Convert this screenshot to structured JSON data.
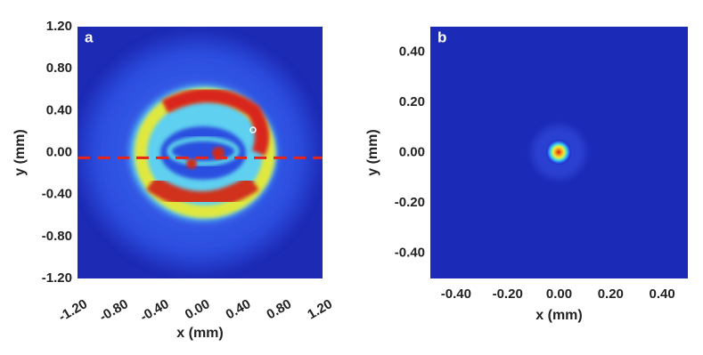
{
  "chart_data": [
    {
      "type": "heatmap",
      "panel_label": "a",
      "xlabel": "x (mm)",
      "ylabel": "y (mm)",
      "xlim": [
        -1.2,
        1.2
      ],
      "ylim": [
        -1.2,
        1.2
      ],
      "xticks": [
        {
          "value": -1.2,
          "label": "-1.20"
        },
        {
          "value": -0.8,
          "label": "-0.80"
        },
        {
          "value": -0.4,
          "label": "-0.40"
        },
        {
          "value": 0,
          "label": "0.00"
        },
        {
          "value": 0.4,
          "label": "0.40"
        },
        {
          "value": 0.8,
          "label": "0.80"
        },
        {
          "value": 1.2,
          "label": "1.20"
        }
      ],
      "yticks": [
        {
          "value": -1.2,
          "label": "-1.20"
        },
        {
          "value": -0.8,
          "label": "-0.80"
        },
        {
          "value": -0.4,
          "label": "-0.40"
        },
        {
          "value": 0,
          "label": "0.00"
        },
        {
          "value": 0.4,
          "label": "0.40"
        },
        {
          "value": 0.8,
          "label": "0.80"
        },
        {
          "value": 1.2,
          "label": "1.20"
        }
      ],
      "xtick_rotation": -30,
      "hline": {
        "y": -0.05,
        "color": "#e82418",
        "style": "dashed"
      }
    },
    {
      "type": "heatmap",
      "panel_label": "b",
      "xlabel": "x (mm)",
      "ylabel": "y (mm)",
      "xlim": [
        -0.5,
        0.5
      ],
      "ylim": [
        -0.5,
        0.5
      ],
      "xticks": [
        {
          "value": -0.4,
          "label": "-0.40"
        },
        {
          "value": -0.2,
          "label": "-0.20"
        },
        {
          "value": 0,
          "label": "0.00"
        },
        {
          "value": 0.2,
          "label": "0.20"
        },
        {
          "value": 0.4,
          "label": "0.40"
        }
      ],
      "yticks": [
        {
          "value": -0.4,
          "label": "-0.40"
        },
        {
          "value": -0.2,
          "label": "-0.20"
        },
        {
          "value": 0,
          "label": "0.00"
        },
        {
          "value": 0.2,
          "label": "0.20"
        },
        {
          "value": 0.4,
          "label": "0.40"
        }
      ],
      "xtick_rotation": 0
    }
  ]
}
